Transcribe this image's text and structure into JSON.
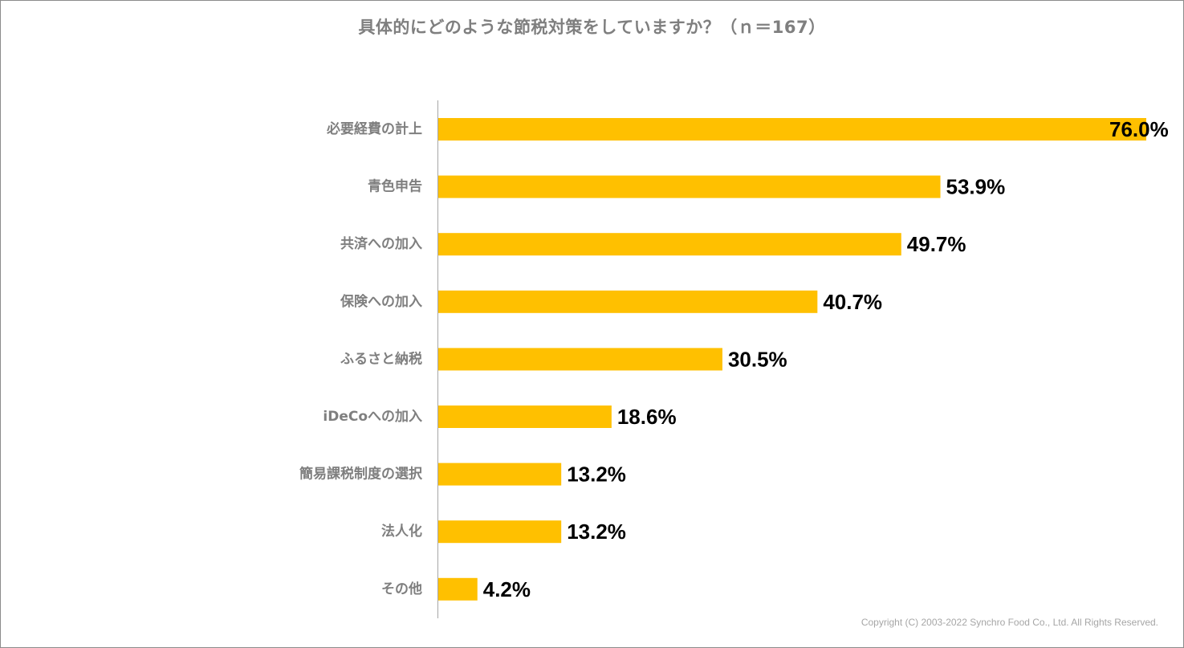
{
  "chart_data": {
    "type": "bar",
    "orientation": "horizontal",
    "title": "具体的にどのような節税対策をしていますか？（ｎ＝167）",
    "categories": [
      "必要経費の計上",
      "青色申告",
      "共済への加入",
      "保険への加入",
      "ふるさと納税",
      "iDeCoへの加入",
      "簡易課税制度の選択",
      "法人化",
      "その他"
    ],
    "values": [
      76.0,
      53.9,
      49.7,
      40.7,
      30.5,
      18.6,
      13.2,
      13.2,
      4.2
    ],
    "value_labels": [
      "76.0%",
      "53.9%",
      "49.7%",
      "40.7%",
      "30.5%",
      "18.6%",
      "13.2%",
      "13.2%",
      "4.2%"
    ],
    "xlim": [
      0,
      76
    ],
    "grid": false,
    "bar_color": "#FFC000"
  },
  "footer": {
    "copyright": "Copyright (C) 2003-2022   Synchro Food Co., Ltd. All Rights Reserved."
  }
}
